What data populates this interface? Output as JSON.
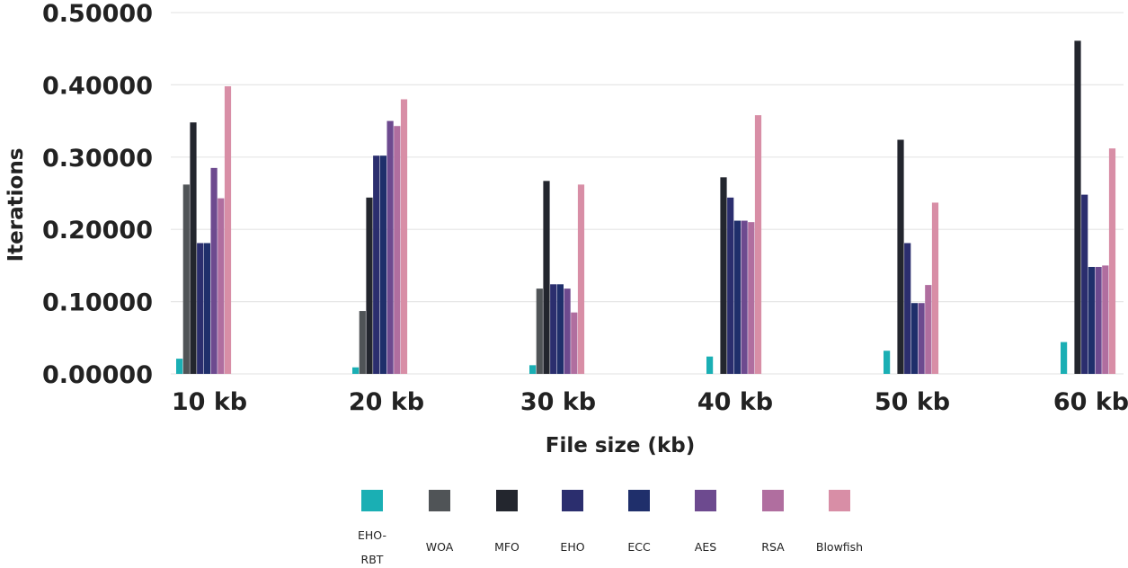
{
  "chart_data": {
    "type": "bar",
    "title": "",
    "xlabel": "File size  (kb)",
    "ylabel": "Iterations",
    "ylim": [
      0,
      0.5
    ],
    "yticks": [
      "0.00000",
      "0.10000",
      "0.20000",
      "0.30000",
      "0.40000",
      "0.50000"
    ],
    "grid": true,
    "legend_position": "bottom",
    "categories": [
      "10 kb",
      "20 kb",
      "30 kb",
      "40 kb",
      "50 kb",
      "60 kb"
    ],
    "series": [
      {
        "name": "EHO-RBT",
        "color": "#1aafb4",
        "values": [
          0.021,
          0.009,
          0.012,
          0.024,
          0.032,
          0.044
        ]
      },
      {
        "name": "WOA",
        "color": "#505457",
        "values": [
          0.262,
          0.087,
          0.118,
          0.0,
          0.0,
          0.0
        ]
      },
      {
        "name": "MFO",
        "color": "#23262e",
        "values": [
          0.348,
          0.244,
          0.267,
          0.272,
          0.324,
          0.461
        ]
      },
      {
        "name": "EHO",
        "color": "#2b2e6e",
        "values": [
          0.181,
          0.302,
          0.124,
          0.244,
          0.181,
          0.248
        ]
      },
      {
        "name": "ECC",
        "color": "#1f2f6b",
        "values": [
          0.181,
          0.302,
          0.124,
          0.212,
          0.098,
          0.148
        ]
      },
      {
        "name": "AES",
        "color": "#6d4a8f",
        "values": [
          0.285,
          0.35,
          0.118,
          0.212,
          0.098,
          0.148
        ]
      },
      {
        "name": "RSA",
        "color": "#b06e9f",
        "values": [
          0.243,
          0.343,
          0.085,
          0.21,
          0.123,
          0.15
        ]
      },
      {
        "name": "Blowfish",
        "color": "#d88ea6",
        "values": [
          0.398,
          0.38,
          0.262,
          0.358,
          0.237,
          0.312
        ]
      }
    ],
    "legend_rows": [
      [
        "EHO-",
        "RBT"
      ],
      [
        "WOA"
      ],
      [
        "MFO"
      ],
      [
        "EHO"
      ],
      [
        "ECC"
      ],
      [
        "AES"
      ],
      [
        "RSA"
      ],
      [
        "Blowfish"
      ]
    ]
  }
}
